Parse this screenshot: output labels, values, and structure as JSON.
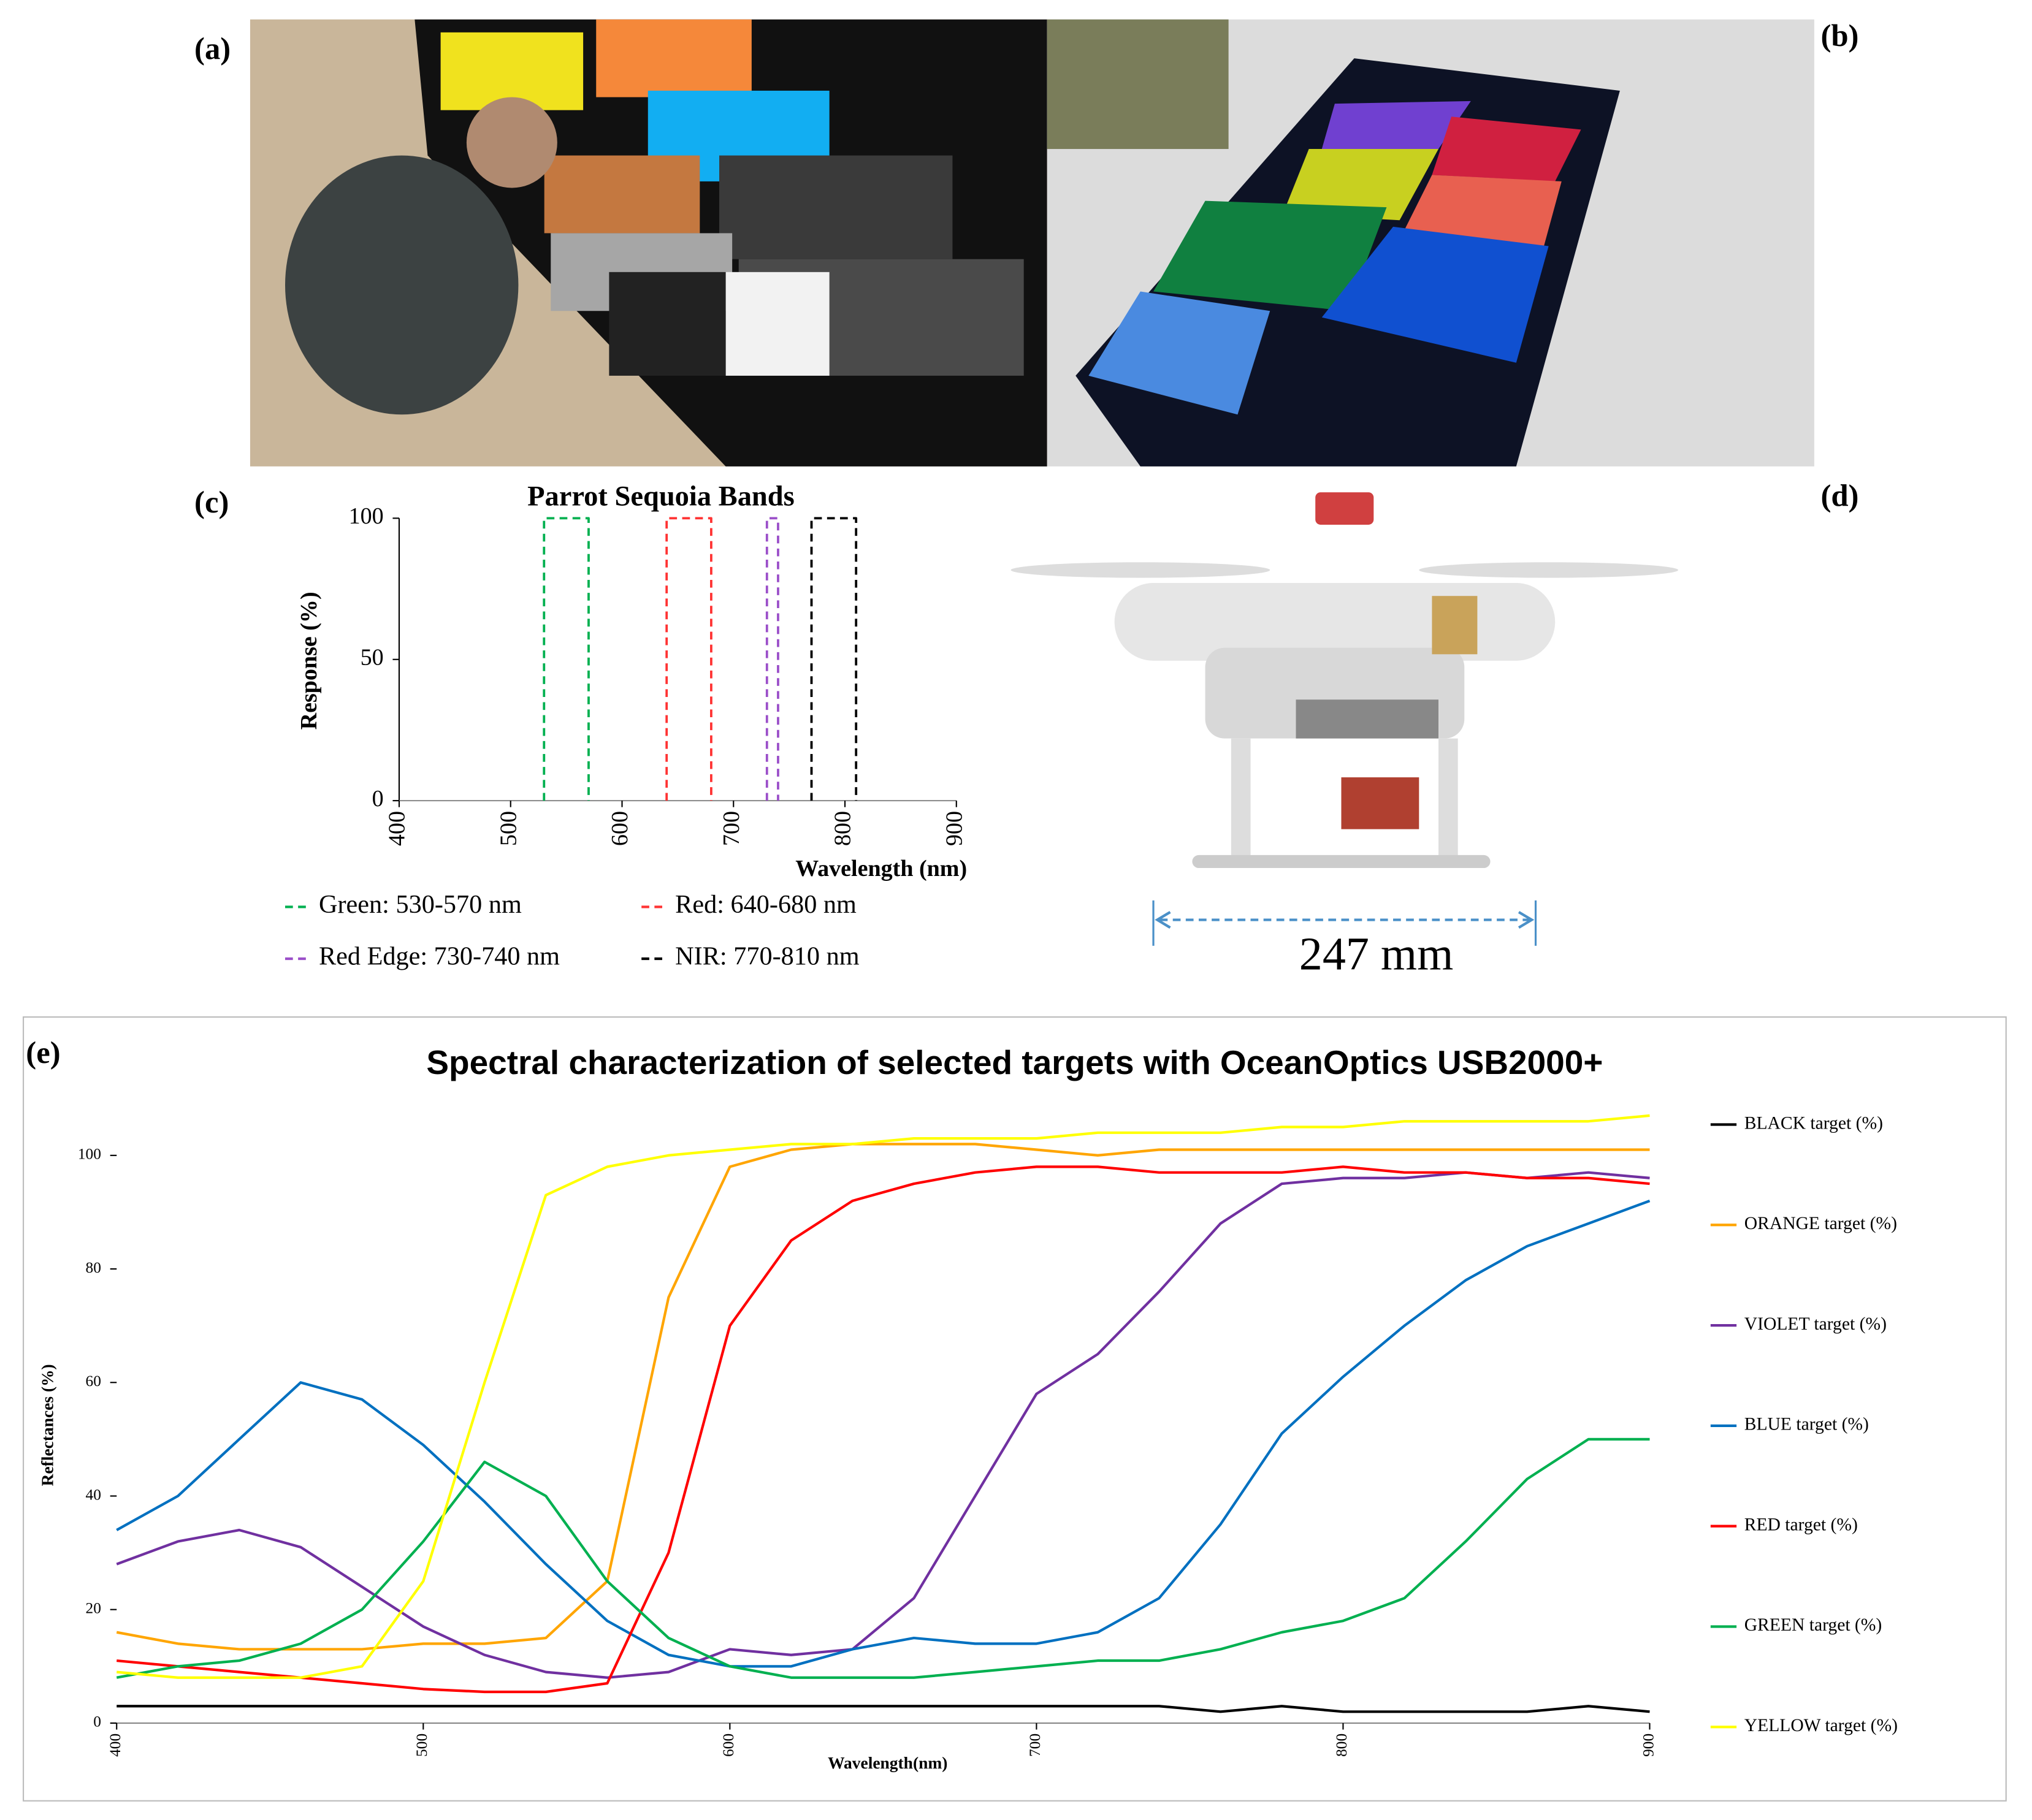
{
  "panels": {
    "a": "(a)",
    "b": "(b)",
    "d": "(d)"
  },
  "dimension_label": "247 mm",
  "chart_data": [
    {
      "type": "line",
      "panel": "(c)",
      "title": "Parrot Sequoia Bands",
      "x_label": "Wavelength (nm)",
      "y_label": "Response (%)",
      "xlim": [
        400,
        900
      ],
      "xticks": [
        400,
        500,
        600,
        700,
        800,
        900
      ],
      "ylim": [
        0,
        100
      ],
      "yticks": [
        0,
        50,
        100
      ],
      "dashed": true,
      "series": [
        {
          "name": "Green: 530-570 nm",
          "color": "#00b050",
          "x": [
            530,
            530,
            570,
            570
          ],
          "values": [
            0,
            100,
            100,
            0
          ]
        },
        {
          "name": "Red: 640-680 nm",
          "color": "#ff3333",
          "x": [
            640,
            640,
            680,
            680
          ],
          "values": [
            0,
            100,
            100,
            0
          ]
        },
        {
          "name": "Red Edge: 730-740 nm",
          "color": "#9b4fc9",
          "x": [
            730,
            730,
            740,
            740
          ],
          "values": [
            0,
            100,
            100,
            0
          ]
        },
        {
          "name": "NIR: 770-810 nm",
          "color": "#000000",
          "x": [
            770,
            770,
            810,
            810
          ],
          "values": [
            0,
            100,
            100,
            0
          ]
        }
      ]
    },
    {
      "type": "line",
      "panel": "(e)",
      "title": "Spectral characterization of selected targets with OceanOptics USB2000+",
      "x_label": "Wavelength(nm)",
      "y_label": "Reflectances (%)",
      "xlim": [
        400,
        900
      ],
      "xticks": [
        400,
        500,
        600,
        700,
        800,
        900
      ],
      "ylim": [
        0,
        110
      ],
      "yticks": [
        0,
        20,
        40,
        60,
        80,
        100
      ],
      "x": [
        400,
        420,
        440,
        460,
        480,
        500,
        520,
        540,
        560,
        580,
        600,
        620,
        640,
        660,
        680,
        700,
        720,
        740,
        760,
        780,
        800,
        820,
        840,
        860,
        880,
        900
      ],
      "series": [
        {
          "name": "BLACK target (%)",
          "color": "#000000",
          "values": [
            3,
            3,
            3,
            3,
            3,
            3,
            3,
            3,
            3,
            3,
            3,
            3,
            3,
            3,
            3,
            3,
            3,
            3,
            2,
            3,
            2,
            2,
            2,
            2,
            3,
            2
          ]
        },
        {
          "name": "ORANGE target (%)",
          "color": "#ffa500",
          "values": [
            16,
            14,
            13,
            13,
            13,
            14,
            14,
            15,
            25,
            75,
            98,
            101,
            102,
            102,
            102,
            101,
            100,
            101,
            101,
            101,
            101,
            101,
            101,
            101,
            101,
            101
          ]
        },
        {
          "name": "VIOLET target (%)",
          "color": "#7030a0",
          "values": [
            28,
            32,
            34,
            31,
            24,
            17,
            12,
            9,
            8,
            9,
            13,
            12,
            13,
            22,
            40,
            58,
            65,
            76,
            88,
            95,
            96,
            96,
            97,
            96,
            97,
            96
          ]
        },
        {
          "name": "BLUE target (%)",
          "color": "#0070c0",
          "values": [
            34,
            40,
            50,
            60,
            57,
            49,
            39,
            28,
            18,
            12,
            10,
            10,
            13,
            15,
            14,
            14,
            16,
            22,
            35,
            51,
            61,
            70,
            78,
            84,
            88,
            92
          ]
        },
        {
          "name": "RED target (%)",
          "color": "#ff0000",
          "values": [
            11,
            10,
            9,
            8,
            7,
            6,
            5.5,
            5.5,
            7,
            30,
            70,
            85,
            92,
            95,
            97,
            98,
            98,
            97,
            97,
            97,
            98,
            97,
            97,
            96,
            96,
            95
          ]
        },
        {
          "name": "GREEN target (%)",
          "color": "#00b050",
          "values": [
            8,
            10,
            11,
            14,
            20,
            32,
            46,
            40,
            25,
            15,
            10,
            8,
            8,
            8,
            9,
            10,
            11,
            11,
            13,
            16,
            18,
            22,
            32,
            43,
            50,
            50
          ]
        },
        {
          "name": "YELLOW target (%)",
          "color": "#ffff00",
          "values": [
            9,
            8,
            8,
            8,
            10,
            25,
            60,
            93,
            98,
            100,
            101,
            102,
            102,
            103,
            103,
            103,
            104,
            104,
            104,
            105,
            105,
            106,
            106,
            106,
            106,
            107
          ]
        }
      ]
    }
  ]
}
